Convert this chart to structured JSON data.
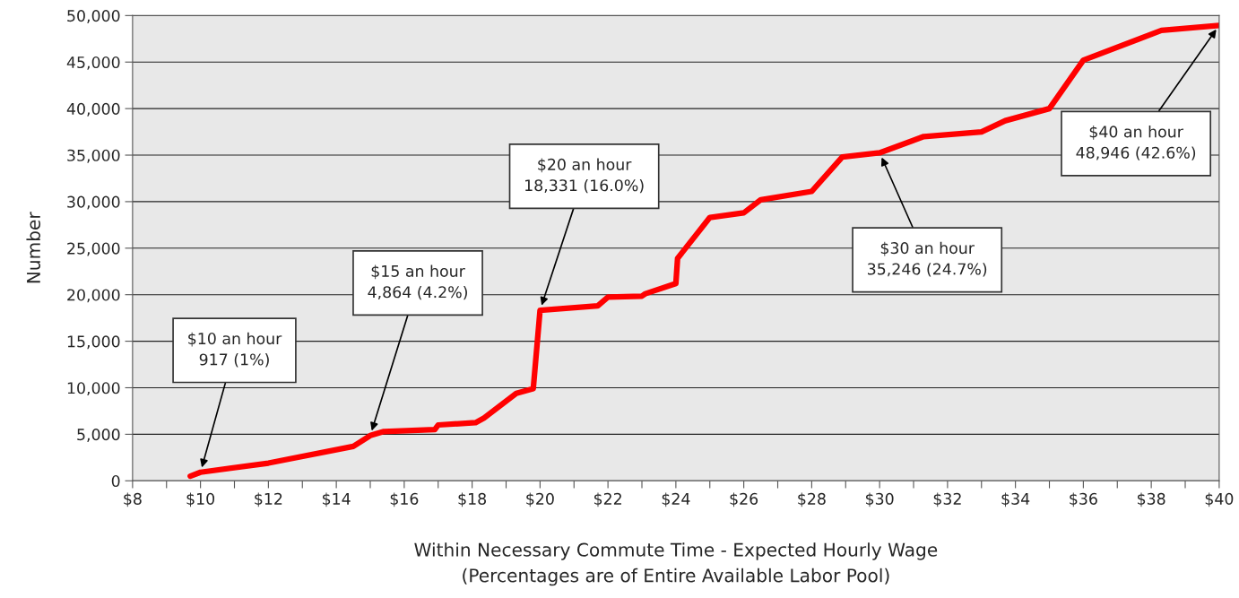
{
  "chart_data": {
    "type": "line",
    "xlabel": "Within Necessary Commute Time - Expected Hourly Wage\n(Percentages are of Entire Available Labor Pool)",
    "ylabel": "Number",
    "series": [
      {
        "color": "#ff0000",
        "x": [
          9.7,
          10.0,
          12.0,
          14.5,
          15.0,
          15.4,
          16.9,
          17.0,
          18.1,
          18.35,
          19.3,
          19.8,
          20.0,
          21.7,
          22.0,
          23.0,
          23.1,
          24.0,
          24.05,
          25.0,
          26.0,
          26.5,
          28.0,
          28.9,
          30.0,
          31.3,
          33.0,
          33.7,
          35.0,
          36.0,
          38.3,
          40.0
        ],
        "values": [
          500,
          917,
          1900,
          3700,
          4864,
          5300,
          5500,
          6000,
          6250,
          6750,
          9400,
          9900,
          18331,
          18800,
          19750,
          19850,
          20100,
          21200,
          23900,
          28300,
          28800,
          30200,
          31100,
          34800,
          35246,
          37000,
          37500,
          38700,
          40000,
          45200,
          48400,
          48946
        ]
      }
    ],
    "xlim": [
      8,
      40
    ],
    "xticks": [
      {
        "value": 8,
        "label": "$8"
      },
      {
        "value": 9,
        "label": null
      },
      {
        "value": 10,
        "label": "$10"
      },
      {
        "value": 11,
        "label": null
      },
      {
        "value": 12,
        "label": "$12"
      },
      {
        "value": 13,
        "label": null
      },
      {
        "value": 14,
        "label": "$14"
      },
      {
        "value": 15,
        "label": null
      },
      {
        "value": 16,
        "label": "$16"
      },
      {
        "value": 17,
        "label": null
      },
      {
        "value": 18,
        "label": "$18"
      },
      {
        "value": 19,
        "label": null
      },
      {
        "value": 20,
        "label": "$20"
      },
      {
        "value": 21,
        "label": null
      },
      {
        "value": 22,
        "label": "$22"
      },
      {
        "value": 23,
        "label": null
      },
      {
        "value": 24,
        "label": "$24"
      },
      {
        "value": 25,
        "label": null
      },
      {
        "value": 26,
        "label": "$26"
      },
      {
        "value": 27,
        "label": null
      },
      {
        "value": 28,
        "label": "$28"
      },
      {
        "value": 29,
        "label": null
      },
      {
        "value": 30,
        "label": "$30"
      },
      {
        "value": 31,
        "label": null
      },
      {
        "value": 32,
        "label": "$32"
      },
      {
        "value": 33,
        "label": null
      },
      {
        "value": 34,
        "label": "$34"
      },
      {
        "value": 35,
        "label": null
      },
      {
        "value": 36,
        "label": "$36"
      },
      {
        "value": 37,
        "label": null
      },
      {
        "value": 38,
        "label": "$38"
      },
      {
        "value": 39,
        "label": null
      },
      {
        "value": 40,
        "label": "$40"
      }
    ],
    "ylim": [
      0,
      50000
    ],
    "yticks": [
      {
        "value": 0,
        "label": "0"
      },
      {
        "value": 5000,
        "label": "5,000"
      },
      {
        "value": 10000,
        "label": "10,000"
      },
      {
        "value": 15000,
        "label": "15,000"
      },
      {
        "value": 20000,
        "label": "20,000"
      },
      {
        "value": 25000,
        "label": "25,000"
      },
      {
        "value": 30000,
        "label": "30,000"
      },
      {
        "value": 35000,
        "label": "35,000"
      },
      {
        "value": 40000,
        "label": "40,000"
      },
      {
        "value": 45000,
        "label": "45,000"
      },
      {
        "value": 50000,
        "label": "50,000"
      }
    ],
    "grid": "y",
    "marker": "none",
    "line_style": "solid",
    "annotations": [
      {
        "text": "$10 an hour\n917 (1%)",
        "x": 10.0,
        "y": 917
      },
      {
        "text": "$15 an hour\n4,864 (4.2%)",
        "x": 15.0,
        "y": 4864
      },
      {
        "text": "$20 an hour\n18,331 (16.0%)",
        "x": 20.0,
        "y": 18331
      },
      {
        "text": "$30 an hour\n35,246 (24.7%)",
        "x": 30.0,
        "y": 35246
      },
      {
        "text": "$40 an hour\n48,946 (42.6%)",
        "x": 40.0,
        "y": 48946
      }
    ]
  }
}
